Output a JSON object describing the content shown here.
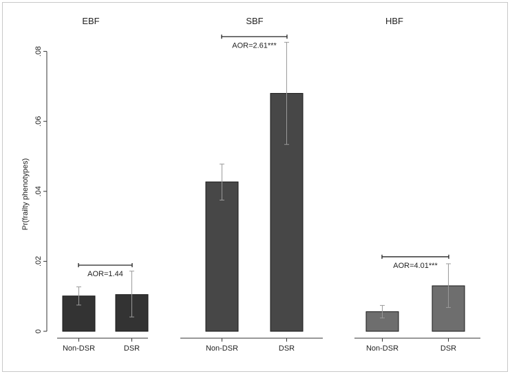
{
  "chart_data": {
    "type": "bar",
    "ylabel": "Pr(frailty phenotypes)",
    "ylim": [
      0,
      0.085
    ],
    "yticks": [
      "0",
      ".02",
      ".04",
      ".06",
      ".08"
    ],
    "yticks_values": [
      0,
      0.02,
      0.04,
      0.06,
      0.08
    ],
    "panels": [
      {
        "title": "EBF",
        "color": "#333333",
        "categories": [
          "Non-DSR",
          "DSR"
        ],
        "values": [
          0.0101,
          0.0105
        ],
        "ci_low": [
          0.0075,
          0.0041
        ],
        "ci_high": [
          0.0127,
          0.0172
        ],
        "annotation": "AOR=1.44",
        "bracket_y": 0.0189
      },
      {
        "title": "SBF",
        "color": "#474747",
        "categories": [
          "Non-DSR",
          "DSR"
        ],
        "values": [
          0.0427,
          0.068
        ],
        "ci_low": [
          0.0375,
          0.0534
        ],
        "ci_high": [
          0.0478,
          0.0826
        ],
        "annotation": "AOR=2.61***",
        "bracket_y": 0.0842
      },
      {
        "title": "HBF",
        "color": "#6e6e6e",
        "categories": [
          "Non-DSR",
          "DSR"
        ],
        "values": [
          0.0056,
          0.013
        ],
        "ci_low": [
          0.0038,
          0.0068
        ],
        "ci_high": [
          0.0074,
          0.0193
        ],
        "annotation": "AOR=4.01***",
        "bracket_y": 0.0213
      }
    ]
  }
}
